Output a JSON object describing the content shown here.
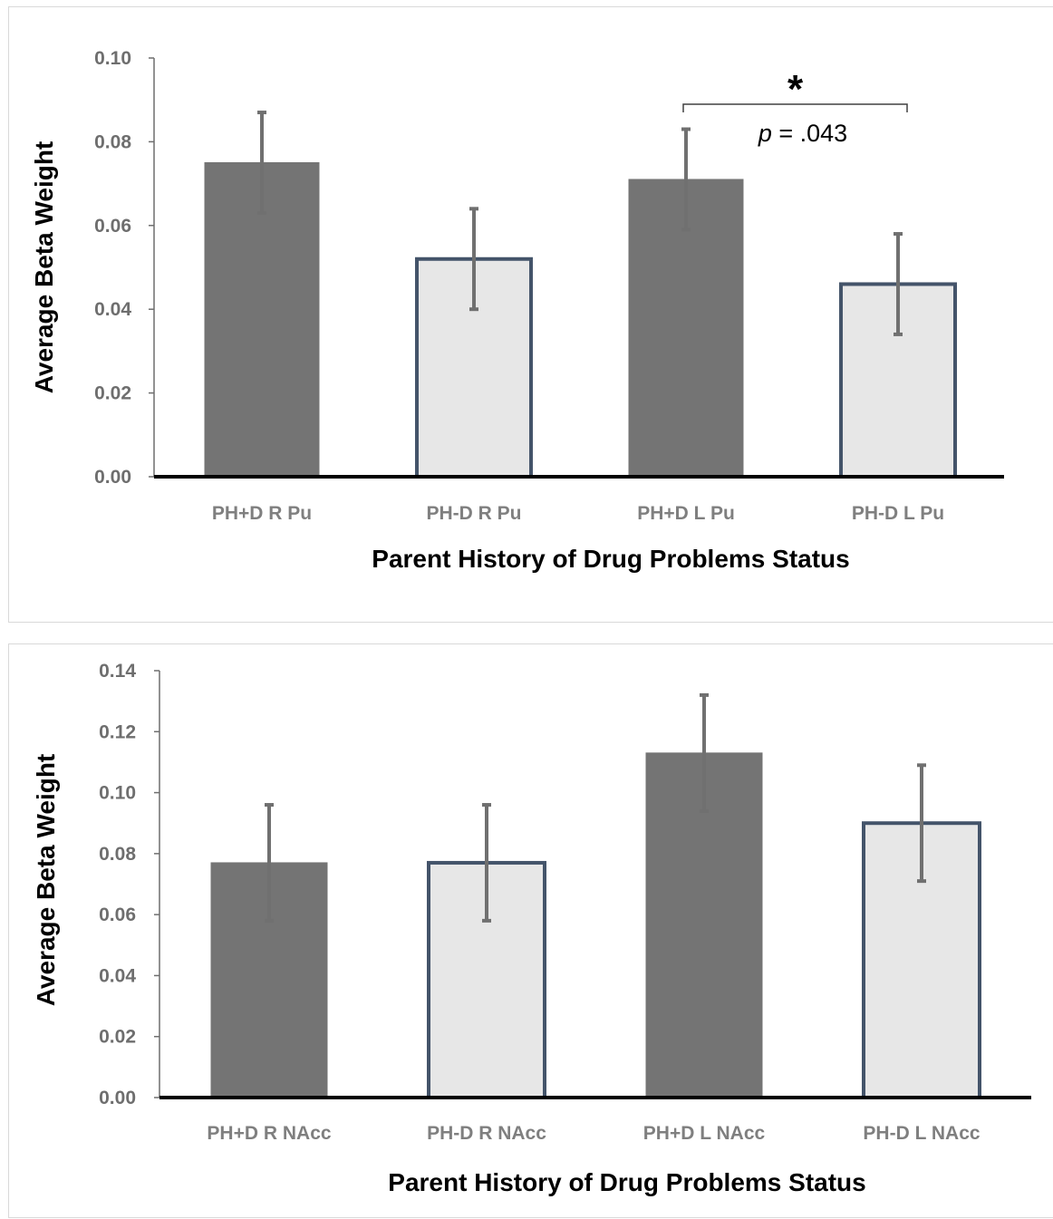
{
  "colors": {
    "dark_fill": "#747474",
    "light_fill": "#e7e7e7",
    "light_stroke": "#44546a",
    "error_bar": "#707070",
    "axis": "#000000",
    "tick": "#6e6e6e"
  },
  "chart_data": [
    {
      "type": "bar",
      "categories": [
        "PH+D R Pu",
        "PH-D R Pu",
        "PH+D L Pu",
        "PH-D L Pu"
      ],
      "values": [
        0.075,
        0.052,
        0.071,
        0.046
      ],
      "errors": [
        0.012,
        0.012,
        0.012,
        0.012
      ],
      "styles": [
        "dark",
        "light",
        "dark",
        "light"
      ],
      "xlabel": "Parent History of Drug Problems Status",
      "ylabel": "Average Beta Weight",
      "ylim": [
        0,
        0.1
      ],
      "yticks": [
        0.0,
        0.02,
        0.04,
        0.06,
        0.08,
        0.1
      ],
      "ytick_labels": [
        "0.00",
        "0.02",
        "0.04",
        "0.06",
        "0.08",
        "0.10"
      ],
      "grid": false,
      "annotation": {
        "from_bar": 3,
        "to_bar": 4,
        "marker": "*",
        "p_italic": "p",
        "p_value": " = .043"
      }
    },
    {
      "type": "bar",
      "categories": [
        "PH+D R NAcc",
        "PH-D R NAcc",
        "PH+D L NAcc",
        "PH-D L NAcc"
      ],
      "values": [
        0.077,
        0.077,
        0.113,
        0.09
      ],
      "errors": [
        0.019,
        0.019,
        0.019,
        0.019
      ],
      "styles": [
        "dark",
        "light",
        "dark",
        "light"
      ],
      "xlabel": "Parent History of Drug Problems Status",
      "ylabel": "Average Beta Weight",
      "ylim": [
        0,
        0.14
      ],
      "yticks": [
        0.0,
        0.02,
        0.04,
        0.06,
        0.08,
        0.1,
        0.12,
        0.14
      ],
      "ytick_labels": [
        "0.00",
        "0.02",
        "0.04",
        "0.06",
        "0.08",
        "0.10",
        "0.12",
        "0.14"
      ],
      "grid": false
    }
  ]
}
